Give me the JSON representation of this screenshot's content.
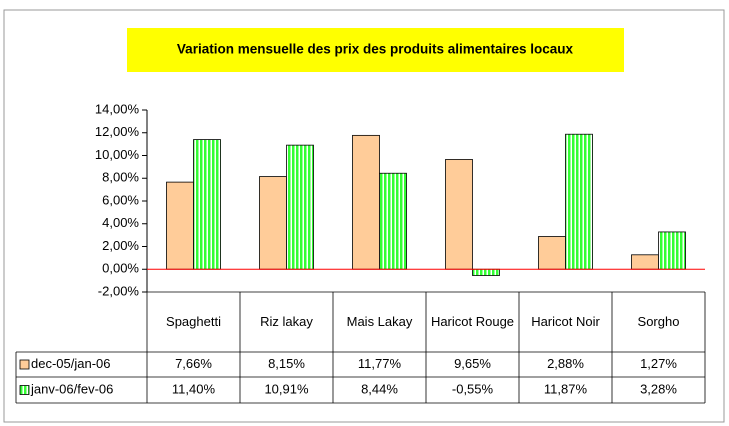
{
  "chart_data": {
    "type": "bar",
    "title": "Variation mensuelle des prix des produits alimentaires locaux",
    "categories": [
      "Spaghetti",
      "Riz lakay",
      "Mais Lakay",
      "Haricot Rouge",
      "Haricot Noir",
      "Sorgho"
    ],
    "series": [
      {
        "name": "dec-05/jan-06",
        "color": "#ffcc99",
        "values": [
          7.66,
          8.15,
          11.77,
          9.65,
          2.88,
          1.27
        ],
        "value_labels": [
          "7,66%",
          "8,15%",
          "11,77%",
          "9,65%",
          "2,88%",
          "1,27%"
        ]
      },
      {
        "name": "janv-06/fev-06",
        "color": "#33ff33",
        "values": [
          11.4,
          10.91,
          8.44,
          -0.55,
          11.87,
          3.28
        ],
        "value_labels": [
          "11,40%",
          "10,91%",
          "8,44%",
          "-0,55%",
          "11,87%",
          "3,28%"
        ]
      }
    ],
    "ylim": [
      -2,
      14
    ],
    "yticks": [
      {
        "value": -2,
        "label": "-2,00%"
      },
      {
        "value": 0,
        "label": "0,00%"
      },
      {
        "value": 2,
        "label": "2,00%"
      },
      {
        "value": 4,
        "label": "4,00%"
      },
      {
        "value": 6,
        "label": "6,00%"
      },
      {
        "value": 8,
        "label": "8,00%"
      },
      {
        "value": 10,
        "label": "10,00%"
      },
      {
        "value": 12,
        "label": "12,00%"
      },
      {
        "value": 14,
        "label": "14,00%"
      }
    ],
    "zero_line_color": "#ff0000"
  }
}
